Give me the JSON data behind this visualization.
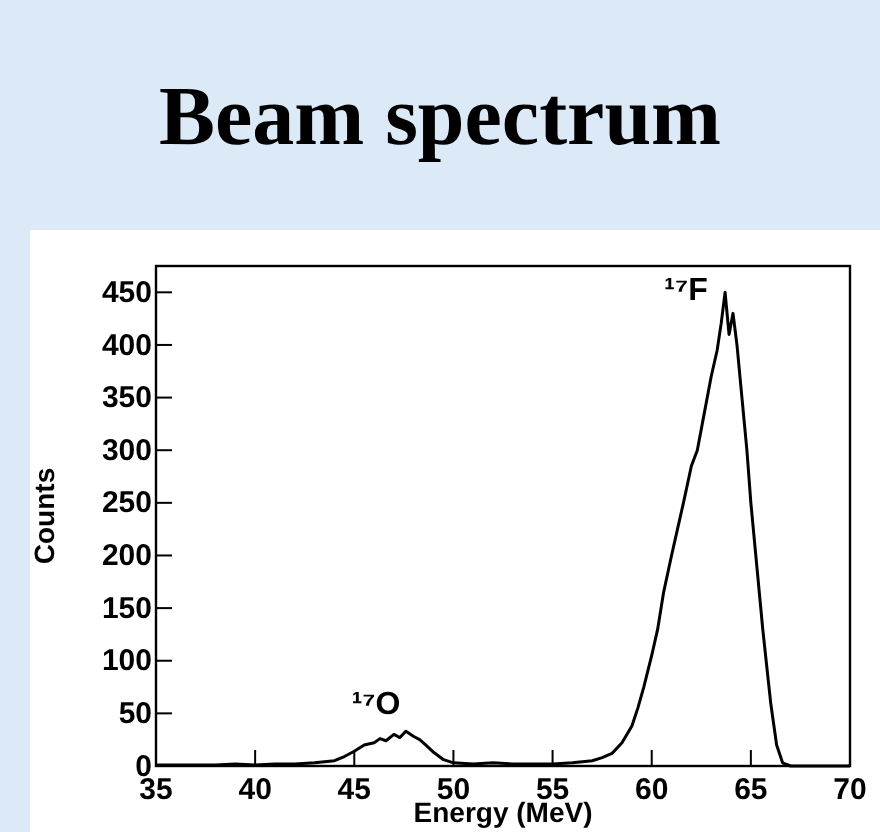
{
  "chart_data": {
    "type": "line",
    "title": "Beam spectrum",
    "xlabel": "Energy (MeV)",
    "ylabel": "Counts",
    "xlim": [
      35,
      70
    ],
    "xticks": [
      35,
      40,
      45,
      50,
      55,
      60,
      65,
      70
    ],
    "ylim": [
      0,
      475
    ],
    "yticks": [
      0,
      50,
      100,
      150,
      200,
      250,
      300,
      350,
      400,
      450
    ],
    "grid": false,
    "marker": "none",
    "line_style": "solid",
    "annotations": [
      "¹⁷O",
      "¹⁷F"
    ],
    "series": [
      {
        "color": "#000000",
        "x": [
          35,
          36,
          37,
          38,
          39,
          40,
          41,
          42,
          43,
          44,
          44.5,
          45,
          45.5,
          46,
          46.3,
          46.6,
          47,
          47.3,
          47.6,
          48,
          48.3,
          48.6,
          49,
          49.5,
          50,
          51,
          52,
          53,
          54,
          55,
          56,
          57,
          57.5,
          58,
          58.5,
          59,
          59.3,
          59.6,
          60,
          60.3,
          60.6,
          61,
          61.3,
          61.6,
          62,
          62.3,
          62.6,
          63,
          63.3,
          63.5,
          63.7,
          63.9,
          64.1,
          64.3,
          64.5,
          64.8,
          65,
          65.3,
          65.6,
          66,
          66.3,
          66.6,
          67,
          68,
          69,
          70
        ],
        "values": [
          1,
          1,
          1,
          1,
          2,
          1,
          2,
          2,
          3,
          5,
          9,
          14,
          20,
          22,
          26,
          24,
          30,
          27,
          33,
          28,
          25,
          20,
          13,
          6,
          3,
          2,
          3,
          2,
          2,
          2,
          3,
          5,
          8,
          12,
          22,
          38,
          55,
          75,
          105,
          130,
          165,
          200,
          225,
          250,
          285,
          300,
          330,
          370,
          395,
          420,
          450,
          410,
          430,
          400,
          360,
          300,
          250,
          190,
          130,
          60,
          20,
          3,
          0,
          0,
          0,
          0
        ]
      }
    ]
  }
}
